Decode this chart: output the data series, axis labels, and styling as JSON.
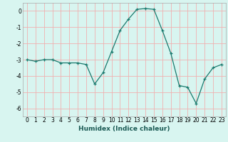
{
  "x": [
    0,
    1,
    2,
    3,
    4,
    5,
    6,
    7,
    8,
    9,
    10,
    11,
    12,
    13,
    14,
    15,
    16,
    17,
    18,
    19,
    20,
    21,
    22,
    23
  ],
  "y": [
    -3.0,
    -3.1,
    -3.0,
    -3.0,
    -3.2,
    -3.2,
    -3.2,
    -3.3,
    -4.5,
    -3.8,
    -2.5,
    -1.2,
    -0.5,
    0.1,
    0.15,
    0.1,
    -1.2,
    -2.6,
    -4.6,
    -4.7,
    -5.7,
    -4.2,
    -3.5,
    -3.3
  ],
  "line_color": "#1a7a6e",
  "marker": "+",
  "marker_size": 3,
  "bg_color": "#d8f5f0",
  "grid_color": "#f0b0b0",
  "xlabel": "Humidex (Indice chaleur)",
  "ylim": [
    -6.5,
    0.5
  ],
  "xlim": [
    -0.5,
    23.5
  ],
  "yticks": [
    0,
    -1,
    -2,
    -3,
    -4,
    -5,
    -6
  ],
  "xticks": [
    0,
    1,
    2,
    3,
    4,
    5,
    6,
    7,
    8,
    9,
    10,
    11,
    12,
    13,
    14,
    15,
    16,
    17,
    18,
    19,
    20,
    21,
    22,
    23
  ],
  "xlabel_fontsize": 6.5,
  "tick_fontsize": 5.5,
  "linewidth": 0.9,
  "markeredgewidth": 0.9
}
